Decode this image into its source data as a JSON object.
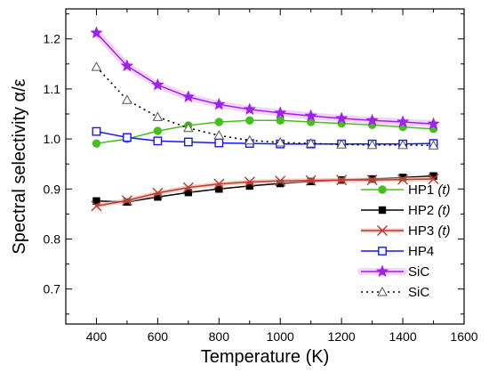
{
  "chart_data": {
    "type": "line",
    "xlabel": "Temperature (K)",
    "ylabel": "Spectral selectivity α/ε",
    "xlim": [
      300,
      1600
    ],
    "ylim": [
      0.63,
      1.26
    ],
    "x_ticks": [
      400,
      600,
      800,
      1000,
      1200,
      1400,
      1600
    ],
    "y_ticks": [
      0.7,
      0.8,
      0.9,
      1.0,
      1.1,
      1.2
    ],
    "x_tick_labels": [
      "400",
      "600",
      "800",
      "1000",
      "1200",
      "1400",
      "1600"
    ],
    "y_tick_labels": [
      "0.7",
      "0.8",
      "0.9",
      "1.0",
      "1.1",
      "1.2"
    ],
    "legend_position": "bottom-right",
    "x": [
      400,
      500,
      600,
      700,
      800,
      900,
      1000,
      1100,
      1200,
      1300,
      1400,
      1500
    ],
    "series": [
      {
        "name": "HP1",
        "name_suffix": "(t)",
        "color": "#44c01a",
        "marker": "circle",
        "values": [
          0.991,
          1.0,
          1.016,
          1.027,
          1.034,
          1.037,
          1.037,
          1.034,
          1.031,
          1.028,
          1.024,
          1.02
        ]
      },
      {
        "name": "HP2",
        "name_suffix": "(t)",
        "color": "#000000",
        "marker": "square",
        "values": [
          0.876,
          0.874,
          0.884,
          0.893,
          0.9,
          0.906,
          0.911,
          0.915,
          0.918,
          0.92,
          0.923,
          0.926
        ]
      },
      {
        "name": "HP3",
        "name_suffix": "(t)",
        "color": "#c0392b",
        "marker": "x",
        "values": [
          0.866,
          0.877,
          0.892,
          0.903,
          0.91,
          0.914,
          0.916,
          0.917,
          0.918,
          0.918,
          0.919,
          0.92
        ]
      },
      {
        "name": "HP4",
        "name_suffix": "",
        "color": "#1515ff",
        "marker": "open-square",
        "values": [
          1.015,
          1.003,
          0.996,
          0.994,
          0.992,
          0.991,
          0.99,
          0.99,
          0.99,
          0.99,
          0.99,
          0.991
        ]
      },
      {
        "name": "SiC",
        "name_suffix": "",
        "color": "#a020f0",
        "marker": "star",
        "values": [
          1.212,
          1.146,
          1.108,
          1.084,
          1.069,
          1.059,
          1.052,
          1.046,
          1.041,
          1.037,
          1.034,
          1.03
        ]
      },
      {
        "name": "SiC",
        "name_suffix": "",
        "color": "#000000",
        "marker": "open-triangle",
        "dashed": true,
        "values": [
          1.144,
          1.078,
          1.044,
          1.022,
          1.007,
          0.997,
          0.993,
          0.991,
          0.989,
          0.988,
          0.988,
          0.987
        ]
      }
    ]
  }
}
